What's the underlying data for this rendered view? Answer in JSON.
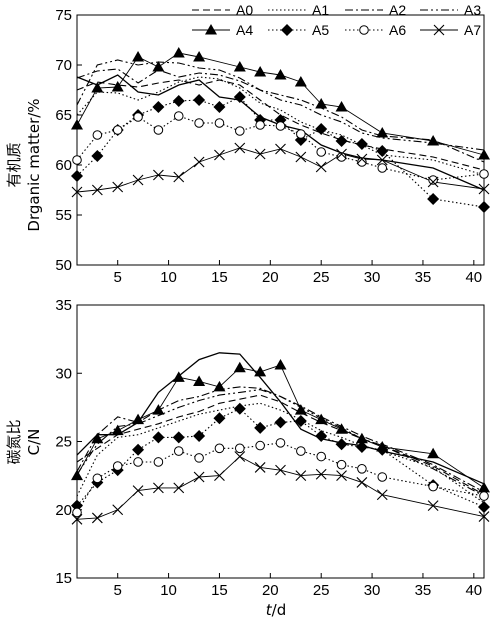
{
  "chart_data": [
    {
      "type": "line",
      "ylabel_cn": "有机质",
      "ylabel_en": "Drganic matter/%",
      "xlabel": "",
      "ylim": [
        50,
        75
      ],
      "xlim": [
        1,
        41
      ],
      "yticks": [
        50,
        55,
        60,
        65,
        70,
        75
      ],
      "xticks": [
        5,
        10,
        15,
        20,
        25,
        30,
        35,
        40
      ],
      "grid": false,
      "legend_position": "top-right",
      "legend_columns": 4,
      "series": [
        {
          "name": "A0",
          "marker": "none",
          "dash": "long-dash",
          "x": [
            1,
            3,
            5,
            7,
            9,
            11,
            13,
            15,
            17,
            19,
            21,
            23,
            25,
            27,
            29,
            31,
            36,
            41
          ],
          "y": [
            67.5,
            68.3,
            68.0,
            67.8,
            68.2,
            68.5,
            68.0,
            68.5,
            68.0,
            66.5,
            65.0,
            64.0,
            63.2,
            62.5,
            62.0,
            61.6,
            60.8,
            59.5
          ]
        },
        {
          "name": "A1",
          "marker": "none",
          "dash": "dotted",
          "x": [
            1,
            3,
            5,
            7,
            9,
            11,
            13,
            15,
            17,
            19,
            21,
            23,
            25,
            27,
            29,
            31,
            36,
            41
          ],
          "y": [
            65.0,
            67.3,
            67.2,
            66.5,
            67.3,
            68.3,
            68.8,
            68.6,
            67.7,
            66.2,
            65.5,
            64.3,
            63.5,
            63.0,
            62.0,
            61.0,
            60.5,
            59.0
          ]
        },
        {
          "name": "A2",
          "marker": "none",
          "dash": "dash-dot",
          "x": [
            1,
            3,
            5,
            7,
            9,
            11,
            13,
            15,
            17,
            19,
            21,
            23,
            25,
            27,
            29,
            31,
            36,
            41
          ],
          "y": [
            68.7,
            69.4,
            69.6,
            68.2,
            69.5,
            68.8,
            69.2,
            69.0,
            68.4,
            67.5,
            67.0,
            66.5,
            65.7,
            64.8,
            63.5,
            62.9,
            62.5,
            60.3
          ]
        },
        {
          "name": "A3",
          "marker": "none",
          "dash": "dash-dot-dot",
          "x": [
            1,
            3,
            5,
            7,
            9,
            11,
            13,
            15,
            17,
            19,
            21,
            23,
            25,
            27,
            29,
            31,
            36,
            41
          ],
          "y": [
            66.0,
            70.0,
            70.5,
            70.0,
            70.3,
            70.2,
            69.7,
            69.5,
            68.7,
            67.5,
            66.5,
            66.0,
            65.0,
            64.3,
            63.2,
            62.7,
            62.2,
            61.5
          ]
        },
        {
          "name": "A4",
          "marker": "filled-triangle",
          "dash": "solid-thin",
          "x": [
            1,
            3,
            5,
            7,
            9,
            11,
            13,
            17,
            19,
            21,
            23,
            25,
            27,
            31,
            36,
            41
          ],
          "y": [
            64.0,
            67.7,
            67.8,
            70.8,
            69.8,
            71.2,
            70.8,
            69.8,
            69.3,
            69.0,
            68.3,
            66.1,
            65.8,
            63.2,
            62.4,
            61.0
          ]
        },
        {
          "name": "A5",
          "marker": "filled-diamond",
          "dash": "dotted",
          "x": [
            1,
            3,
            5,
            7,
            9,
            11,
            13,
            15,
            17,
            19,
            21,
            23,
            25,
            27,
            29,
            31,
            36,
            41
          ],
          "y": [
            58.9,
            60.9,
            63.5,
            65.0,
            65.8,
            66.4,
            66.5,
            65.8,
            66.8,
            64.5,
            64.5,
            62.5,
            63.6,
            62.4,
            62.1,
            61.4,
            56.6,
            55.8
          ]
        },
        {
          "name": "A6",
          "marker": "open-circle",
          "dash": "dotted",
          "x": [
            1,
            3,
            5,
            7,
            9,
            11,
            13,
            15,
            17,
            19,
            21,
            23,
            25,
            27,
            29,
            31,
            36,
            41
          ],
          "y": [
            60.5,
            63.0,
            63.5,
            64.8,
            63.5,
            64.9,
            64.2,
            64.2,
            63.4,
            64.0,
            63.9,
            63.1,
            61.3,
            60.8,
            60.3,
            59.7,
            58.5,
            59.1
          ]
        },
        {
          "name": "A7",
          "marker": "x",
          "dash": "solid-thin",
          "x": [
            1,
            3,
            5,
            7,
            9,
            11,
            13,
            15,
            17,
            19,
            21,
            23,
            25,
            27,
            29,
            31,
            36,
            41
          ],
          "y": [
            57.3,
            57.5,
            57.8,
            58.5,
            59.0,
            58.8,
            60.3,
            61.0,
            61.7,
            61.1,
            61.6,
            60.8,
            59.8,
            61.1,
            60.6,
            60.5,
            58.3,
            57.6
          ]
        },
        {
          "name": "",
          "marker": "none",
          "dash": "solid",
          "x": [
            1,
            3,
            5,
            7,
            9,
            11,
            13,
            15,
            17,
            19,
            21,
            23,
            25,
            27,
            29,
            31,
            36,
            41
          ],
          "y": [
            68.8,
            68.0,
            69.0,
            67.3,
            67.0,
            68.0,
            68.5,
            66.8,
            66.5,
            64.8,
            64.0,
            63.5,
            62.0,
            61.2,
            60.7,
            60.5,
            59.7,
            57.5
          ]
        }
      ]
    },
    {
      "type": "line",
      "ylabel_cn": "碳氮比",
      "ylabel_en": "C/N",
      "xlabel": "t/d",
      "xlabel_italic": "t",
      "xlabel_rest": "/d",
      "ylim": [
        15,
        35
      ],
      "xlim": [
        1,
        41
      ],
      "yticks": [
        15,
        20,
        25,
        30,
        35
      ],
      "xticks": [
        5,
        10,
        15,
        20,
        25,
        30,
        35,
        40
      ],
      "grid": false,
      "series": [
        {
          "name": "A0",
          "marker": "none",
          "dash": "long-dash",
          "x": [
            1,
            3,
            5,
            7,
            9,
            11,
            13,
            15,
            17,
            19,
            21,
            23,
            25,
            27,
            29,
            31,
            36,
            41
          ],
          "y": [
            23.5,
            24.5,
            25.5,
            25.9,
            26.3,
            26.8,
            27.2,
            27.8,
            28.1,
            28.4,
            27.9,
            27.1,
            26.4,
            25.8,
            25.2,
            24.7,
            23.2,
            21.1
          ]
        },
        {
          "name": "A1",
          "marker": "none",
          "dash": "dotted",
          "x": [
            1,
            3,
            5,
            7,
            9,
            11,
            13,
            15,
            17,
            19,
            21,
            23,
            25,
            27,
            29,
            31,
            36,
            41
          ],
          "y": [
            21.0,
            24.0,
            25.3,
            25.5,
            26.0,
            26.5,
            27.0,
            27.3,
            27.6,
            27.8,
            27.3,
            26.6,
            25.8,
            25.3,
            24.7,
            24.3,
            23.1,
            20.5
          ]
        },
        {
          "name": "A2",
          "marker": "none",
          "dash": "dash-dot",
          "x": [
            1,
            3,
            5,
            7,
            9,
            11,
            13,
            15,
            17,
            19,
            21,
            23,
            25,
            27,
            29,
            31,
            36,
            41
          ],
          "y": [
            22.8,
            25.5,
            26.8,
            26.4,
            27.3,
            28.0,
            28.3,
            28.8,
            29.0,
            28.9,
            28.3,
            27.6,
            26.8,
            26.1,
            25.4,
            24.8,
            23.3,
            21.3
          ]
        },
        {
          "name": "A3",
          "marker": "none",
          "dash": "dash-dot-dot",
          "x": [
            1,
            3,
            5,
            7,
            9,
            11,
            13,
            15,
            17,
            19,
            21,
            23,
            25,
            27,
            29,
            31,
            36,
            41
          ],
          "y": [
            22.6,
            24.8,
            26.1,
            26.3,
            26.9,
            27.5,
            28.0,
            28.4,
            28.6,
            28.8,
            28.3,
            27.5,
            26.7,
            26.0,
            25.2,
            24.7,
            23.0,
            21.0
          ]
        },
        {
          "name": "A4",
          "marker": "filled-triangle",
          "dash": "solid-thin",
          "x": [
            1,
            3,
            5,
            7,
            9,
            11,
            13,
            15,
            17,
            19,
            21,
            23,
            25,
            27,
            29,
            31,
            36,
            41
          ],
          "y": [
            22.5,
            25.2,
            25.8,
            26.6,
            27.3,
            29.7,
            29.4,
            29.0,
            30.4,
            30.1,
            30.6,
            27.3,
            26.6,
            25.9,
            25.2,
            24.6,
            24.1,
            21.6
          ]
        },
        {
          "name": "A5",
          "marker": "filled-diamond",
          "dash": "dotted",
          "x": [
            1,
            3,
            5,
            7,
            9,
            11,
            13,
            15,
            17,
            19,
            21,
            23,
            25,
            27,
            29,
            31,
            36,
            41
          ],
          "y": [
            20.3,
            22.0,
            22.9,
            24.4,
            25.3,
            25.3,
            25.4,
            26.7,
            27.4,
            26.0,
            26.4,
            26.5,
            25.4,
            24.8,
            24.6,
            24.4,
            21.8,
            20.2
          ]
        },
        {
          "name": "A6",
          "marker": "open-circle",
          "dash": "dotted",
          "x": [
            1,
            3,
            5,
            7,
            9,
            11,
            13,
            15,
            17,
            19,
            21,
            23,
            25,
            27,
            29,
            31,
            36,
            41
          ],
          "y": [
            19.8,
            22.3,
            23.2,
            23.5,
            23.5,
            24.3,
            23.8,
            24.5,
            24.5,
            24.7,
            24.9,
            24.3,
            23.9,
            23.3,
            23.0,
            22.4,
            21.7,
            21.0
          ]
        },
        {
          "name": "A7",
          "marker": "x",
          "dash": "solid-thin",
          "x": [
            1,
            3,
            5,
            7,
            9,
            11,
            13,
            15,
            17,
            19,
            21,
            23,
            25,
            27,
            29,
            31,
            36,
            41
          ],
          "y": [
            19.3,
            19.4,
            20.0,
            21.4,
            21.6,
            21.6,
            22.4,
            22.5,
            23.9,
            23.1,
            22.9,
            22.5,
            22.6,
            22.5,
            22.0,
            21.1,
            20.3,
            19.5
          ]
        },
        {
          "name": "",
          "marker": "none",
          "dash": "solid",
          "x": [
            1,
            3,
            5,
            7,
            9,
            11,
            13,
            15,
            17,
            19,
            21,
            23,
            25,
            27,
            29,
            31,
            36,
            41
          ],
          "y": [
            24.0,
            25.5,
            25.5,
            26.4,
            28.6,
            29.8,
            31.0,
            31.5,
            31.4,
            29.7,
            27.9,
            25.9,
            25.2,
            24.9,
            24.7,
            24.3,
            23.5,
            21.9
          ]
        }
      ]
    }
  ]
}
